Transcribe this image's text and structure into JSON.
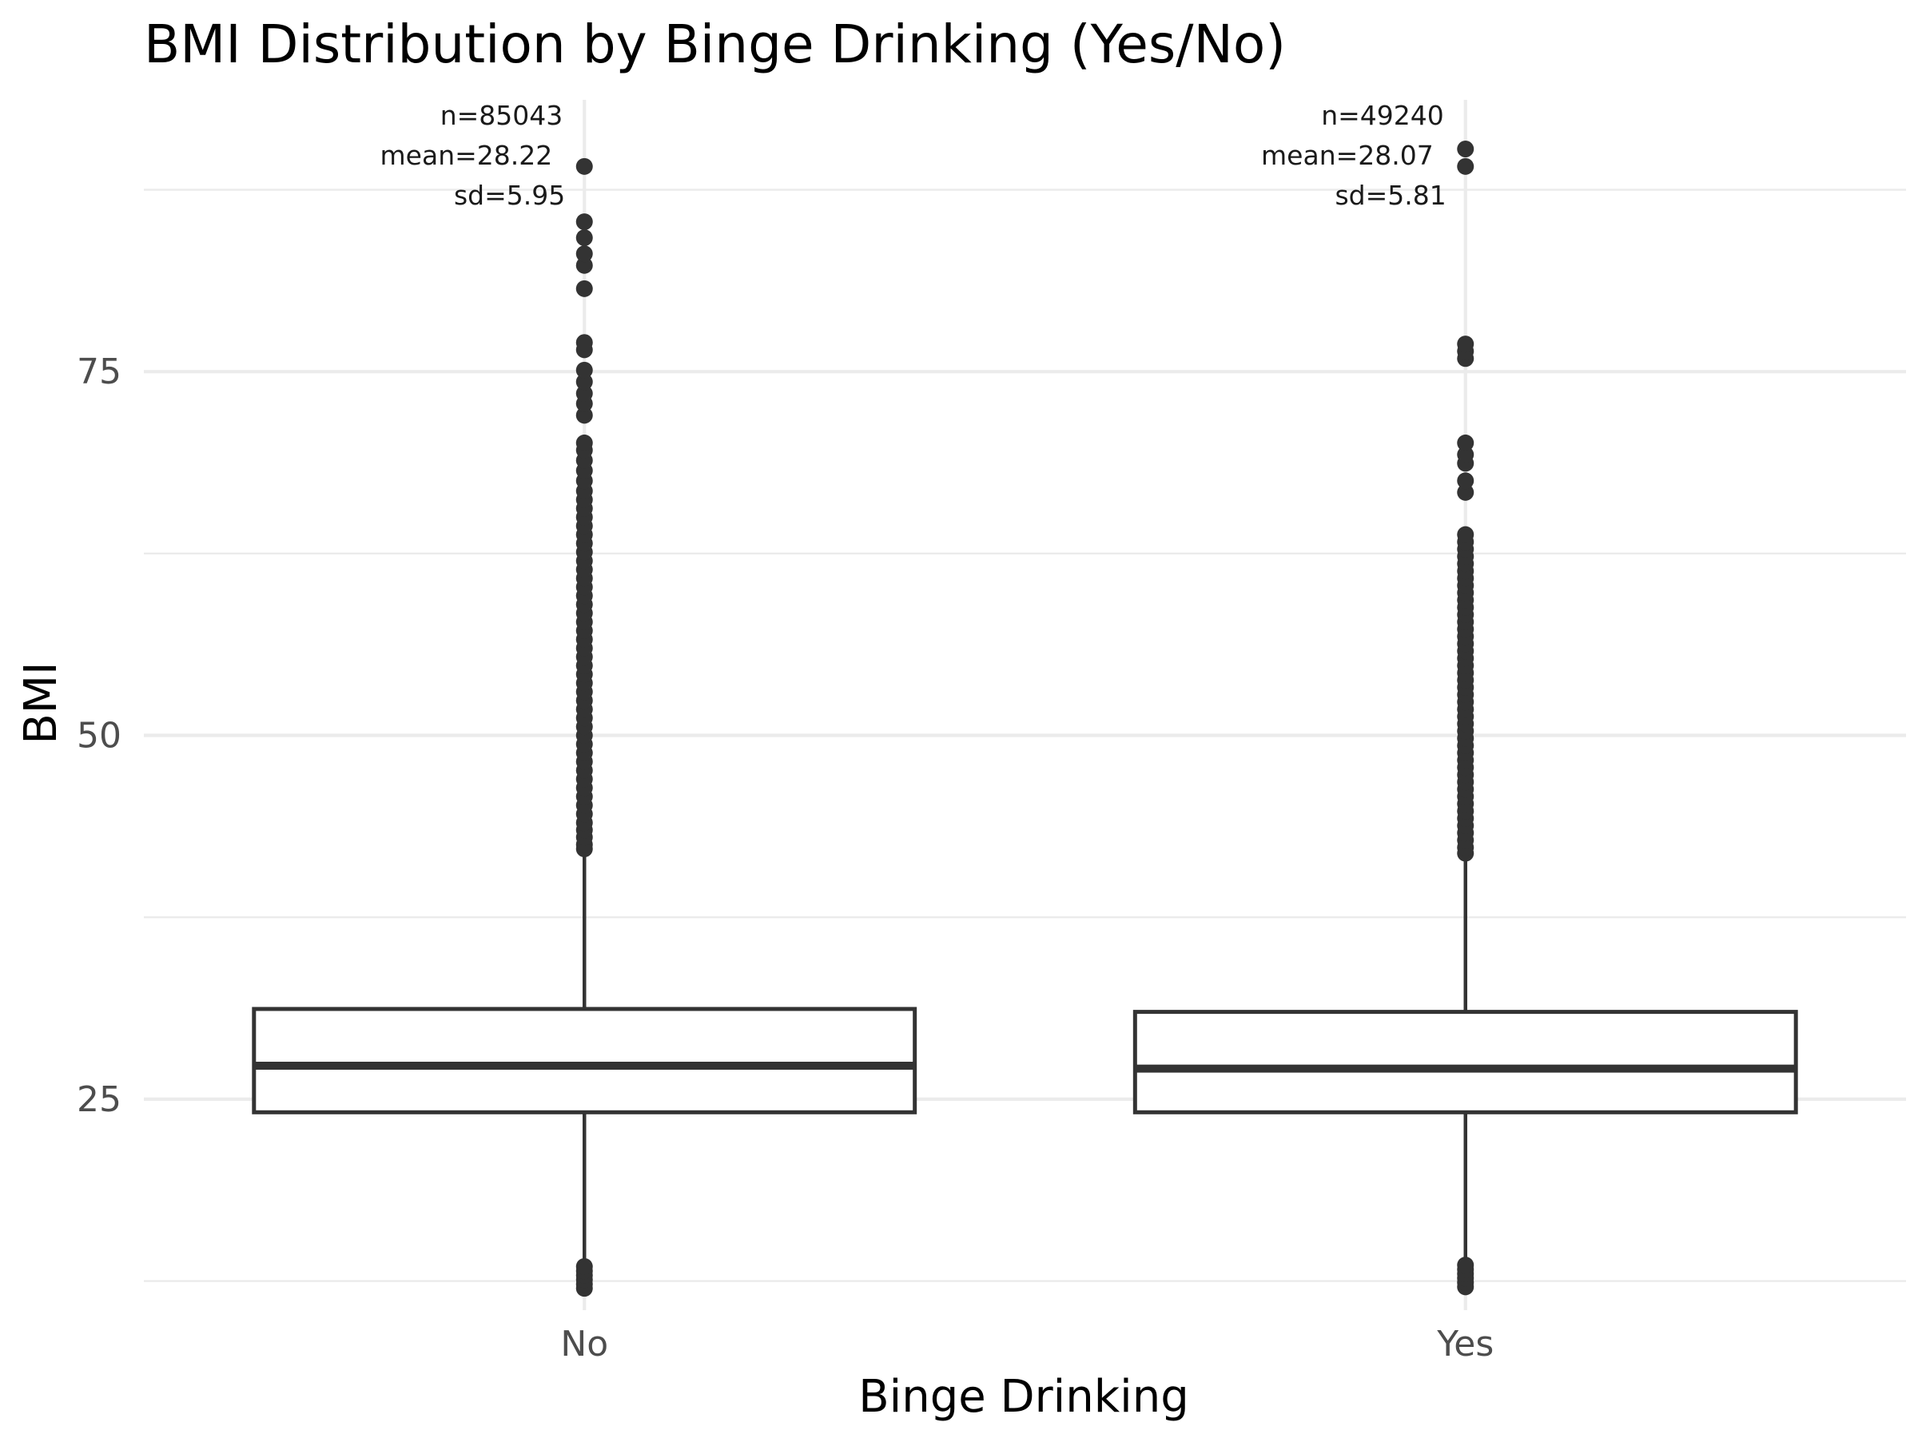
{
  "chart_data": {
    "type": "box",
    "title": "BMI Distribution by Binge Drinking (Yes/No)",
    "xlabel": "Binge Drinking",
    "ylabel": "BMI",
    "ylim": [
      10.5,
      94.5
    ],
    "yticks": [
      25,
      50,
      75
    ],
    "yticks_minor": [
      12.5,
      37.5,
      62.5,
      87.5
    ],
    "grid": true,
    "legend": "none",
    "colors": {
      "box_stroke": "#333333",
      "box_fill": "#ffffff",
      "grid": "#ebebeb"
    },
    "categories": [
      "No",
      "Yes"
    ],
    "groups": [
      {
        "category": "No",
        "annotation": {
          "n": "n=85043",
          "mean": "mean=28.22",
          "sd": "sd=5.95"
        },
        "whisker_low": 13.0,
        "q1": 24.1,
        "median": 27.3,
        "q3": 31.2,
        "whisker_high": 42.0,
        "outliers_high": [
          42.2,
          42.5,
          43.0,
          43.5,
          44.0,
          44.6,
          45.2,
          45.8,
          46.4,
          47.0,
          47.6,
          48.2,
          48.8,
          49.4,
          50.0,
          50.6,
          51.2,
          51.8,
          52.4,
          53.0,
          53.6,
          54.2,
          54.8,
          55.4,
          56.0,
          56.6,
          57.2,
          57.8,
          58.4,
          59.0,
          59.6,
          60.2,
          60.8,
          61.4,
          62.0,
          62.6,
          63.2,
          63.8,
          64.4,
          65.0,
          65.6,
          66.2,
          66.8,
          67.5,
          68.2,
          68.9,
          69.6,
          70.1,
          72.0,
          72.8,
          73.5,
          74.3,
          75.1,
          76.5,
          77.0,
          80.7,
          82.3,
          83.1,
          84.2,
          85.3,
          89.1
        ],
        "outliers_low": [
          12.0,
          12.3,
          12.6,
          12.9,
          13.2,
          13.5
        ]
      },
      {
        "category": "Yes",
        "annotation": {
          "n": "n=49240",
          "mean": "mean=28.07",
          "sd": "sd=5.81"
        },
        "whisker_low": 13.1,
        "q1": 24.1,
        "median": 27.1,
        "q3": 31.0,
        "whisker_high": 41.7,
        "outliers_high": [
          41.9,
          42.3,
          42.8,
          43.3,
          43.8,
          44.3,
          44.8,
          45.3,
          45.8,
          46.3,
          46.8,
          47.3,
          47.8,
          48.3,
          48.8,
          49.3,
          49.8,
          50.3,
          50.8,
          51.3,
          51.8,
          52.3,
          52.8,
          53.3,
          53.8,
          54.3,
          54.8,
          55.3,
          55.8,
          56.3,
          56.8,
          57.3,
          57.8,
          58.3,
          58.8,
          59.3,
          59.8,
          60.3,
          60.8,
          61.3,
          61.8,
          62.3,
          62.8,
          63.3,
          63.8,
          66.7,
          67.5,
          68.7,
          69.3,
          70.1,
          75.9,
          76.4,
          76.9,
          89.1,
          90.3
        ],
        "outliers_low": [
          12.1,
          12.4,
          12.7,
          13.0,
          13.3,
          13.6
        ]
      }
    ]
  }
}
